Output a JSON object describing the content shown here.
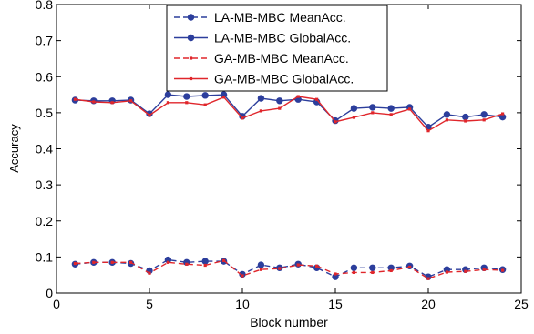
{
  "chart_data": {
    "type": "line",
    "xlabel": "Block number",
    "ylabel": "Accuracy",
    "xlim": [
      0,
      25
    ],
    "ylim": [
      0,
      0.8
    ],
    "xticks": [
      0,
      5,
      10,
      15,
      20,
      25
    ],
    "xtick_labels": [
      "0",
      "5",
      "10",
      "15",
      "20",
      "25"
    ],
    "yticks": [
      0,
      0.1,
      0.2,
      0.3,
      0.4,
      0.5,
      0.6,
      0.7,
      0.8
    ],
    "ytick_labels": [
      "0",
      "0.1",
      "0.2",
      "0.3",
      "0.4",
      "0.5",
      "0.6",
      "0.7",
      "0.8"
    ],
    "grid": false,
    "legend_position": "top-center",
    "x": [
      1,
      2,
      3,
      4,
      5,
      6,
      7,
      8,
      9,
      10,
      11,
      12,
      13,
      14,
      15,
      16,
      17,
      18,
      19,
      20,
      21,
      22,
      23,
      24
    ],
    "series": [
      {
        "name": "LA-MB-MBC MeanAcc.",
        "color": "#2c3e9c",
        "line_style": "dashed",
        "marker": "circle",
        "values": [
          0.08,
          0.085,
          0.085,
          0.082,
          0.062,
          0.092,
          0.085,
          0.088,
          0.088,
          0.052,
          0.078,
          0.07,
          0.08,
          0.07,
          0.045,
          0.07,
          0.07,
          0.07,
          0.075,
          0.045,
          0.065,
          0.065,
          0.07,
          0.065
        ]
      },
      {
        "name": "LA-MB-MBC GlobalAcc.",
        "color": "#2c3e9c",
        "line_style": "solid",
        "marker": "circle",
        "values": [
          0.535,
          0.533,
          0.533,
          0.535,
          0.497,
          0.55,
          0.545,
          0.548,
          0.55,
          0.49,
          0.54,
          0.533,
          0.537,
          0.53,
          0.478,
          0.512,
          0.515,
          0.512,
          0.515,
          0.46,
          0.495,
          0.488,
          0.495,
          0.488
        ]
      },
      {
        "name": "GA-MB-MBC MeanAcc.",
        "color": "#e0262b",
        "line_style": "dashed",
        "marker": "dot",
        "values": [
          0.082,
          0.085,
          0.085,
          0.085,
          0.055,
          0.085,
          0.08,
          0.077,
          0.09,
          0.048,
          0.065,
          0.068,
          0.078,
          0.075,
          0.053,
          0.057,
          0.057,
          0.062,
          0.072,
          0.04,
          0.058,
          0.06,
          0.065,
          0.063
        ]
      },
      {
        "name": "GA-MB-MBC GlobalAcc.",
        "color": "#e0262b",
        "line_style": "solid",
        "marker": "dot",
        "values": [
          0.537,
          0.53,
          0.528,
          0.533,
          0.493,
          0.528,
          0.528,
          0.522,
          0.543,
          0.485,
          0.505,
          0.512,
          0.545,
          0.537,
          0.475,
          0.487,
          0.5,
          0.495,
          0.51,
          0.45,
          0.48,
          0.477,
          0.48,
          0.497
        ]
      }
    ]
  }
}
